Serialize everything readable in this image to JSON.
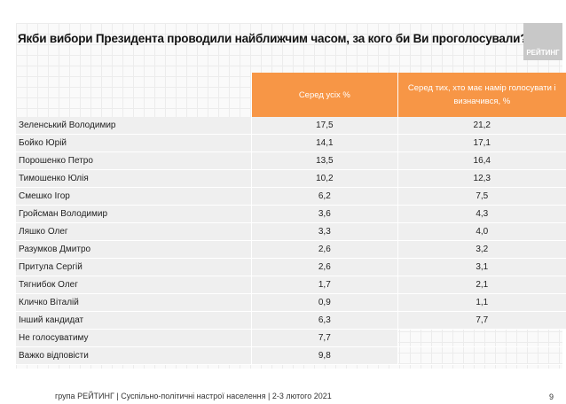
{
  "title": "Якби вибори Президента проводили найближчим часом, за кого би Ви проголосували?",
  "logo_text": "РЕЙТИНГ",
  "columns": [
    "Серед усіх %",
    "Серед тих, хто має намір голосувати і визначився, %"
  ],
  "rows": [
    {
      "name": "Зеленський Володимир",
      "all": "17,5",
      "decided": "21,2"
    },
    {
      "name": "Бойко Юрій",
      "all": "14,1",
      "decided": "17,1"
    },
    {
      "name": "Порошенко Петро",
      "all": "13,5",
      "decided": "16,4"
    },
    {
      "name": "Тимошенко Юлія",
      "all": "10,2",
      "decided": "12,3"
    },
    {
      "name": "Смешко Ігор",
      "all": "6,2",
      "decided": "7,5"
    },
    {
      "name": "Гройсман Володимир",
      "all": "3,6",
      "decided": "4,3"
    },
    {
      "name": "Ляшко Олег",
      "all": "3,3",
      "decided": "4,0"
    },
    {
      "name": "Разумков Дмитро",
      "all": "2,6",
      "decided": "3,2"
    },
    {
      "name": "Притула Сергій",
      "all": "2,6",
      "decided": "3,1"
    },
    {
      "name": "Тягнибок Олег",
      "all": "1,7",
      "decided": "2,1"
    },
    {
      "name": "Кличко Віталій",
      "all": "0,9",
      "decided": "1,1"
    },
    {
      "name": "Інший кандидат",
      "all": "6,3",
      "decided": "7,7"
    },
    {
      "name": "Не голосуватиму",
      "all": "7,7",
      "decided": null
    },
    {
      "name": "Важко відповісти",
      "all": "9,8",
      "decided": null
    }
  ],
  "footer": "група РЕЙТИНГ | Суспільно-політичні настрої населення  | 2-3 лютого 2021",
  "page_number": "9",
  "colors": {
    "header": "#f79646",
    "row": "#efefef"
  }
}
